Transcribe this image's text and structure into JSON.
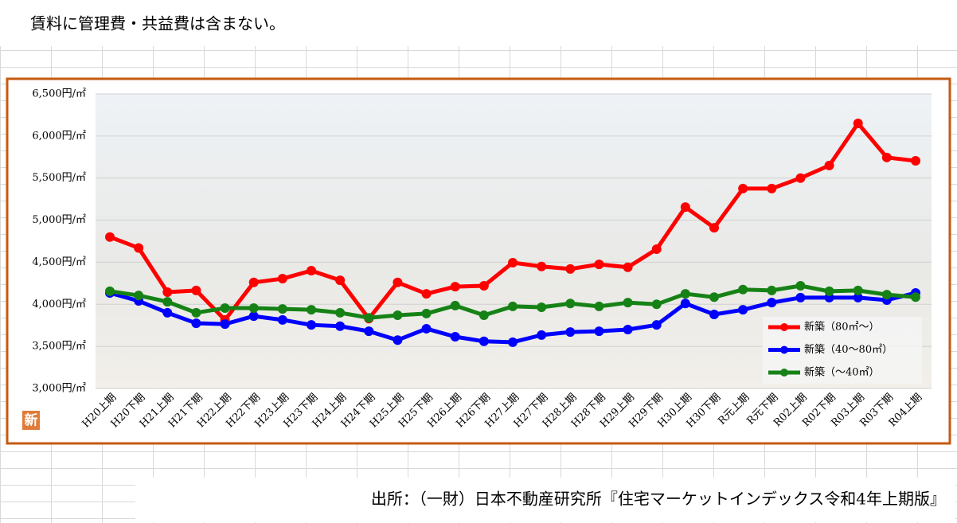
{
  "header": "賃料に管理費・共益費は含まない。",
  "footer": "出所：（一財）日本不動産研究所『住宅マーケットインデックス令和4年上期版』",
  "badge": "新",
  "chart_data": {
    "type": "line",
    "categories": [
      "H20上期",
      "H20下期",
      "H21上期",
      "H21下期",
      "H22上期",
      "H22下期",
      "H23上期",
      "H23下期",
      "H24上期",
      "H24下期",
      "H25上期",
      "H25下期",
      "H26上期",
      "H26下期",
      "H27上期",
      "H27下期",
      "H28上期",
      "H28下期",
      "H29上期",
      "H29下期",
      "H30上期",
      "H30下期",
      "R元上期",
      "R元下期",
      "R02上期",
      "R02下期",
      "R03上期",
      "R03下期",
      "R04上期"
    ],
    "series": [
      {
        "name": "新築（80㎡～）",
        "color": "#ff0000",
        "values": [
          4800,
          4670,
          4145,
          4165,
          3815,
          4260,
          4305,
          4400,
          4285,
          3830,
          4260,
          4125,
          4210,
          4220,
          4495,
          4450,
          4420,
          4475,
          4440,
          4655,
          5155,
          4910,
          5375,
          5375,
          5500,
          5650,
          6150,
          5745,
          5705
        ]
      },
      {
        "name": "新築（40～80㎡）",
        "color": "#0000ff",
        "values": [
          4135,
          4040,
          3900,
          3775,
          3765,
          3860,
          3815,
          3755,
          3740,
          3680,
          3575,
          3710,
          3615,
          3560,
          3550,
          3635,
          3670,
          3680,
          3700,
          3755,
          4010,
          3880,
          3935,
          4020,
          4080,
          4080,
          4080,
          4050,
          4135
        ]
      },
      {
        "name": "新築（～40㎡）",
        "color": "#168216",
        "values": [
          4155,
          4105,
          4030,
          3900,
          3955,
          3955,
          3945,
          3935,
          3900,
          3840,
          3870,
          3890,
          3985,
          3870,
          3975,
          3965,
          4010,
          3975,
          4020,
          4000,
          4125,
          4085,
          4175,
          4165,
          4220,
          4155,
          4165,
          4115,
          4085
        ]
      }
    ],
    "ylim": [
      3000,
      6500
    ],
    "yticks": [
      {
        "value": 3000,
        "label": "3,000円/㎡"
      },
      {
        "value": 3500,
        "label": "3,500円/㎡"
      },
      {
        "value": 4000,
        "label": "4,000円/㎡"
      },
      {
        "value": 4500,
        "label": "4,500円/㎡"
      },
      {
        "value": 5000,
        "label": "5,000円/㎡"
      },
      {
        "value": 5500,
        "label": "5,500円/㎡"
      },
      {
        "value": 6000,
        "label": "6,000円/㎡"
      },
      {
        "value": 6500,
        "label": "6,500円/㎡"
      }
    ],
    "grid": true,
    "legend": "lower right"
  }
}
